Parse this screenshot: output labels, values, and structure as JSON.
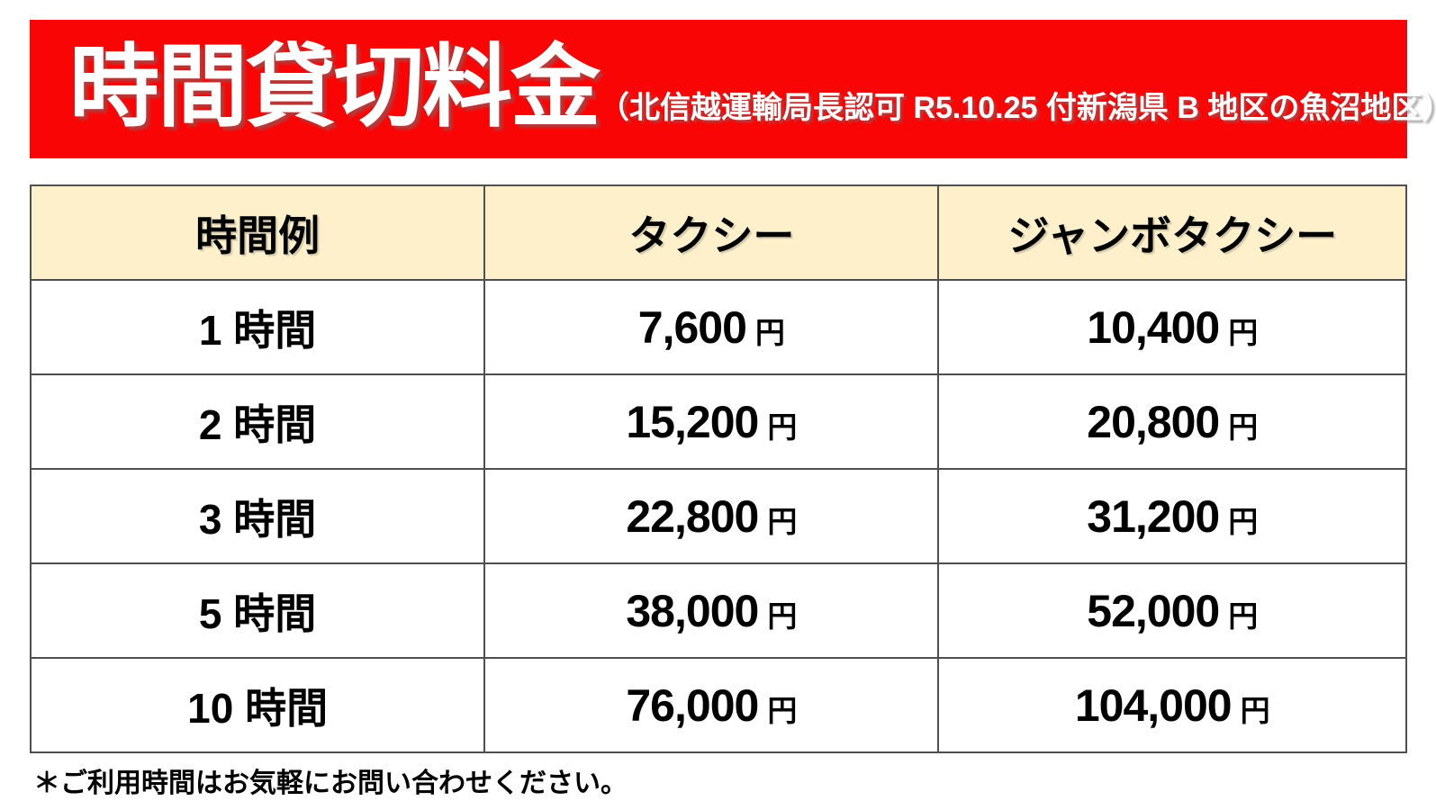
{
  "banner": {
    "title": "時間貸切料金",
    "subtitle": "（北信越運輸局長認可 R5.10.25 付新潟県 B 地区の魚沼地区）"
  },
  "colors": {
    "banner_red": "#FA0505",
    "banner_text": "#FFFFFF",
    "header_cream": "#FEF0CB",
    "border_gray": "#4F4F4F",
    "body_text": "#000000"
  },
  "table": {
    "columns": {
      "hours": "時間例",
      "taxi": "タクシー",
      "jumbo": "ジャンボタクシー"
    },
    "currency_suffix": "円",
    "rows": [
      {
        "hours": "1 時間",
        "taxi": "7,600",
        "jumbo": "10,400"
      },
      {
        "hours": "2 時間",
        "taxi": "15,200",
        "jumbo": "20,800"
      },
      {
        "hours": "3 時間",
        "taxi": "22,800",
        "jumbo": "31,200"
      },
      {
        "hours": "5 時間",
        "taxi": "38,000",
        "jumbo": "52,000"
      },
      {
        "hours": "10 時間",
        "taxi": "76,000",
        "jumbo": "104,000"
      }
    ]
  },
  "footer": {
    "note": "＊ご利用時間はお気軽にお問い合わせください。"
  }
}
